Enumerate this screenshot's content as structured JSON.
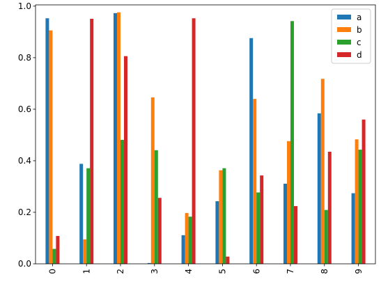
{
  "chart_data": {
    "type": "bar",
    "categories": [
      "0",
      "1",
      "2",
      "3",
      "4",
      "5",
      "6",
      "7",
      "8",
      "9"
    ],
    "series": [
      {
        "name": "a",
        "color": "#1f77b4",
        "values": [
          0.953,
          0.388,
          0.973,
          0.003,
          0.111,
          0.243,
          0.876,
          0.311,
          0.584,
          0.274
        ]
      },
      {
        "name": "b",
        "color": "#ff7f0e",
        "values": [
          0.906,
          0.095,
          0.976,
          0.646,
          0.197,
          0.363,
          0.64,
          0.476,
          0.718,
          0.483
        ]
      },
      {
        "name": "c",
        "color": "#2ca02c",
        "values": [
          0.058,
          0.371,
          0.481,
          0.441,
          0.183,
          0.371,
          0.277,
          0.942,
          0.209,
          0.443
        ]
      },
      {
        "name": "d",
        "color": "#d62728",
        "values": [
          0.108,
          0.951,
          0.806,
          0.256,
          0.953,
          0.028,
          0.343,
          0.224,
          0.435,
          0.56
        ]
      }
    ],
    "title": "",
    "xlabel": "",
    "ylabel": "",
    "ylim": [
      0,
      1.005
    ],
    "yticks": [
      0.0,
      0.2,
      0.4,
      0.6,
      0.8,
      1.0
    ],
    "ytick_labels": [
      "0.0",
      "0.2",
      "0.4",
      "0.6",
      "0.8",
      "1.0"
    ],
    "xtick_rotation": "vertical",
    "grid": false,
    "legend_position": "top-right"
  }
}
